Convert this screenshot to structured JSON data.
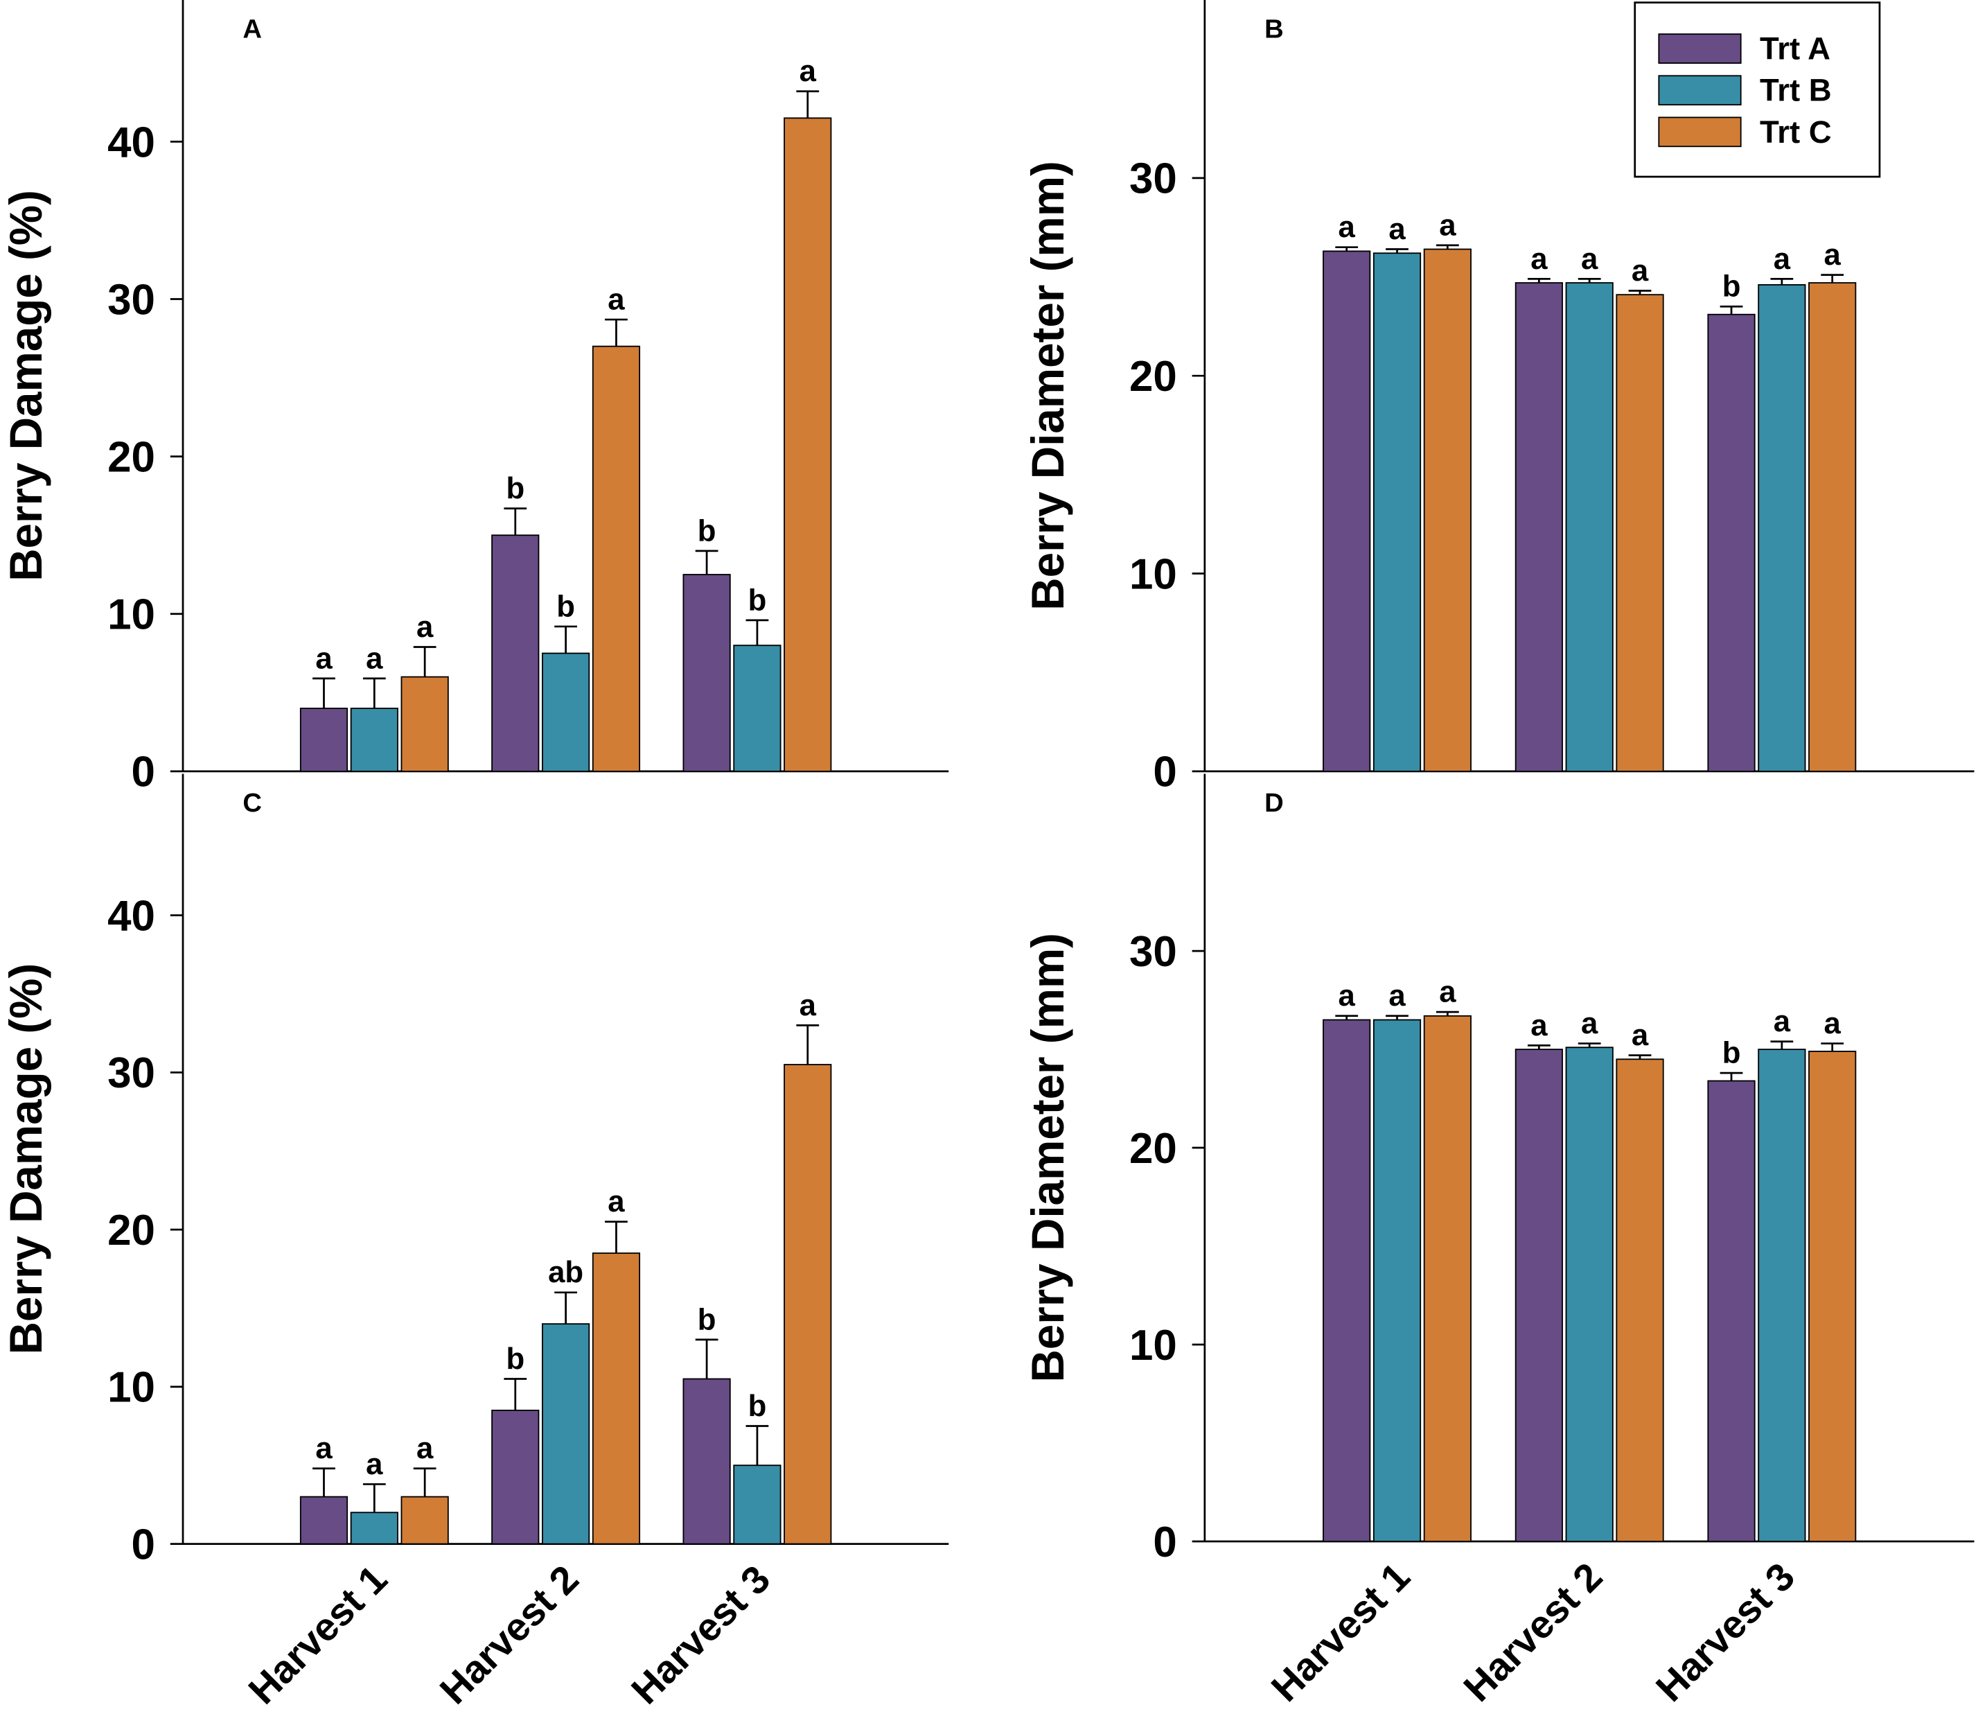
{
  "chart_data": [
    {
      "type": "bar",
      "panel_label": "A",
      "ylabel": "Berry Damage (%)",
      "ylim": [
        0,
        49
      ],
      "yticks": [
        0,
        10,
        20,
        30,
        40
      ],
      "series": [
        {
          "color": "#674c86",
          "values": [
            4,
            15,
            12.5
          ],
          "errors": [
            1.9,
            1.7,
            1.5
          ],
          "letters": [
            "a",
            "b",
            "b"
          ]
        },
        {
          "color": "#388ea6",
          "values": [
            4,
            7.5,
            8
          ],
          "errors": [
            1.9,
            1.7,
            1.6
          ],
          "letters": [
            "a",
            "b",
            "b"
          ]
        },
        {
          "color": "#d17d36",
          "values": [
            6,
            27,
            41.5
          ],
          "errors": [
            1.9,
            1.7,
            1.7
          ],
          "letters": [
            "a",
            "a",
            "a"
          ]
        }
      ]
    },
    {
      "type": "bar",
      "panel_label": "B",
      "ylabel": "Berry Diameter (mm)",
      "ylim": [
        0,
        39
      ],
      "yticks": [
        0,
        10,
        20,
        30
      ],
      "legend": "upper right",
      "series": [
        {
          "name": "Trt A",
          "color": "#674c86",
          "values": [
            26.3,
            24.7,
            23.1
          ],
          "errors": [
            0.2,
            0.2,
            0.4
          ],
          "letters": [
            "a",
            "a",
            "b"
          ]
        },
        {
          "name": "Trt B",
          "color": "#388ea6",
          "values": [
            26.2,
            24.7,
            24.6
          ],
          "errors": [
            0.2,
            0.2,
            0.3
          ],
          "letters": [
            "a",
            "a",
            "a"
          ]
        },
        {
          "name": "Trt C",
          "color": "#d17d36",
          "values": [
            26.4,
            24.1,
            24.7
          ],
          "errors": [
            0.2,
            0.2,
            0.4
          ],
          "letters": [
            "a",
            "a",
            "a"
          ]
        }
      ]
    },
    {
      "type": "bar",
      "panel_label": "C",
      "ylabel": "Berry Damage (%)",
      "ylim": [
        0,
        49
      ],
      "yticks": [
        0,
        10,
        20,
        30,
        40
      ],
      "categories": [
        "Harvest 1",
        "Harvest 2",
        "Harvest 3"
      ],
      "series": [
        {
          "color": "#674c86",
          "values": [
            3,
            8.5,
            10.5
          ],
          "errors": [
            1.8,
            2,
            2.5
          ],
          "letters": [
            "a",
            "b",
            "b"
          ]
        },
        {
          "color": "#388ea6",
          "values": [
            2,
            14,
            5
          ],
          "errors": [
            1.8,
            2,
            2.5
          ],
          "letters": [
            "a",
            "ab",
            "b"
          ]
        },
        {
          "color": "#d17d36",
          "values": [
            3,
            18.5,
            30.5
          ],
          "errors": [
            1.8,
            2,
            2.5
          ],
          "letters": [
            "a",
            "a",
            "a"
          ]
        }
      ]
    },
    {
      "type": "bar",
      "panel_label": "D",
      "ylabel": "Berry Diameter (mm)",
      "ylim": [
        0,
        39
      ],
      "yticks": [
        0,
        10,
        20,
        30
      ],
      "categories": [
        "Harvest 1",
        "Harvest 2",
        "Harvest 3"
      ],
      "series": [
        {
          "color": "#674c86",
          "values": [
            26.5,
            25,
            23.4
          ],
          "errors": [
            0.2,
            0.2,
            0.4
          ],
          "letters": [
            "a",
            "a",
            "b"
          ]
        },
        {
          "color": "#388ea6",
          "values": [
            26.5,
            25.1,
            25
          ],
          "errors": [
            0.2,
            0.2,
            0.4
          ],
          "letters": [
            "a",
            "a",
            "a"
          ]
        },
        {
          "color": "#d17d36",
          "values": [
            26.7,
            24.5,
            24.9
          ],
          "errors": [
            0.2,
            0.2,
            0.4
          ],
          "letters": [
            "a",
            "a",
            "a"
          ]
        }
      ]
    }
  ]
}
